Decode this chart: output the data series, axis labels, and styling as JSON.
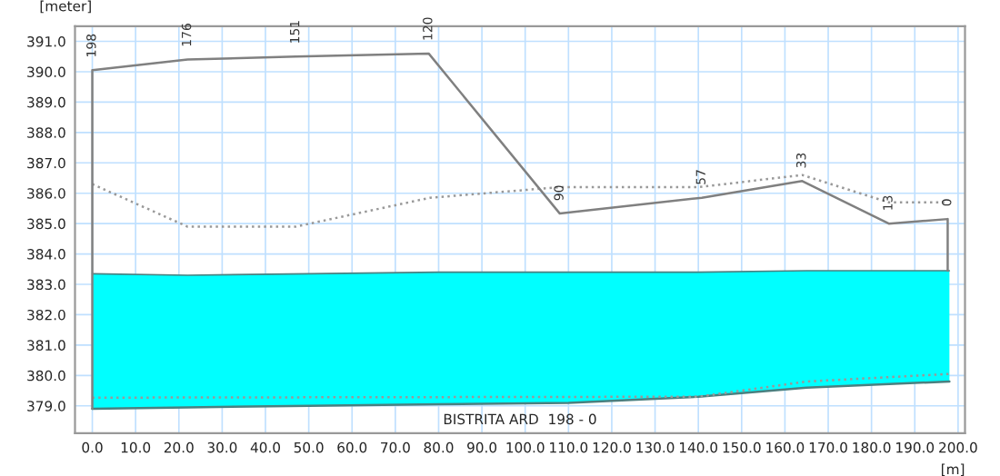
{
  "chart_data": {
    "type": "line",
    "xlabel": "[m]",
    "ylabel": "[meter]",
    "xlim": [
      -4,
      201.6
    ],
    "ylim": [
      378.1,
      391.5
    ],
    "xticks": [
      {
        "value": 0,
        "label": "0.0"
      },
      {
        "value": 10,
        "label": "10.0"
      },
      {
        "value": 20,
        "label": "20.0"
      },
      {
        "value": 30,
        "label": "30.0"
      },
      {
        "value": 40,
        "label": "40.0"
      },
      {
        "value": 50,
        "label": "50.0"
      },
      {
        "value": 60,
        "label": "60.0"
      },
      {
        "value": 70,
        "label": "70.0"
      },
      {
        "value": 80,
        "label": "80.0"
      },
      {
        "value": 90,
        "label": "90.0"
      },
      {
        "value": 100,
        "label": "100.0"
      },
      {
        "value": 110,
        "label": "110.0"
      },
      {
        "value": 120,
        "label": "120.0"
      },
      {
        "value": 130,
        "label": "130.0"
      },
      {
        "value": 140,
        "label": "140.0"
      },
      {
        "value": 150,
        "label": "150.0"
      },
      {
        "value": 160,
        "label": "160.0"
      },
      {
        "value": 170,
        "label": "170.0"
      },
      {
        "value": 180,
        "label": "180.0"
      },
      {
        "value": 190,
        "label": "190.0"
      },
      {
        "value": 200,
        "label": "200.0"
      }
    ],
    "yticks": [
      {
        "value": 379,
        "label": "379.0"
      },
      {
        "value": 380,
        "label": "380.0"
      },
      {
        "value": 381,
        "label": "381.0"
      },
      {
        "value": 382,
        "label": "382.0"
      },
      {
        "value": 383,
        "label": "383.0"
      },
      {
        "value": 384,
        "label": "384.0"
      },
      {
        "value": 385,
        "label": "385.0"
      },
      {
        "value": 386,
        "label": "386.0"
      },
      {
        "value": 387,
        "label": "387.0"
      },
      {
        "value": 388,
        "label": "388.0"
      },
      {
        "value": 389,
        "label": "389.0"
      },
      {
        "value": 390,
        "label": "390.0"
      },
      {
        "value": 391,
        "label": "391.0"
      }
    ],
    "grid": true,
    "legend": false,
    "series": [
      {
        "color": "#4a8080",
        "x": [
          0,
          22,
          50,
          80,
          110,
          140,
          165,
          198
        ],
        "values": [
          378.9,
          378.95,
          379.0,
          379.05,
          379.1,
          379.3,
          379.6,
          379.8
        ]
      },
      {
        "type": "area",
        "color": "#00ffff",
        "x": [
          0,
          22,
          50,
          80,
          110,
          140,
          165,
          198
        ],
        "values": [
          383.35,
          383.3,
          383.35,
          383.4,
          383.4,
          383.4,
          383.45,
          383.45
        ]
      },
      {
        "color": "#999999",
        "line_style": "dotted",
        "x": [
          0,
          140,
          165,
          198
        ],
        "values": [
          379.27,
          379.3,
          379.8,
          380.05
        ]
      },
      {
        "color": "#999999",
        "line_style": "dotted",
        "x": [
          0,
          22,
          47,
          78,
          108,
          140,
          164,
          184,
          197.6
        ],
        "values": [
          386.3,
          384.9,
          384.9,
          385.85,
          386.2,
          386.2,
          386.6,
          385.7,
          385.7
        ]
      },
      {
        "color": "#808080",
        "line_style": "solid",
        "x": [
          0,
          0,
          22,
          47,
          77.7,
          108,
          140.8,
          164,
          184,
          197.6,
          197.6
        ],
        "values": [
          378.9,
          390.05,
          390.4,
          390.5,
          390.6,
          385.33,
          385.85,
          386.4,
          385.0,
          385.15,
          383.45
        ]
      }
    ],
    "annotations": [
      {
        "text": "198",
        "x": 0,
        "y": 390.05
      },
      {
        "text": "176",
        "x": 22,
        "y": 390.4
      },
      {
        "text": "151",
        "x": 47,
        "y": 390.5
      },
      {
        "text": "120",
        "x": 77.7,
        "y": 390.6
      },
      {
        "text": "90",
        "x": 108,
        "y": 385.33
      },
      {
        "text": "57",
        "x": 140.8,
        "y": 385.85
      },
      {
        "text": "33",
        "x": 164,
        "y": 386.4
      },
      {
        "text": "13",
        "x": 184,
        "y": 385.0
      },
      {
        "text": "0",
        "x": 197.6,
        "y": 385.15
      },
      "BISTRITA ARD  198 - 0"
    ]
  }
}
